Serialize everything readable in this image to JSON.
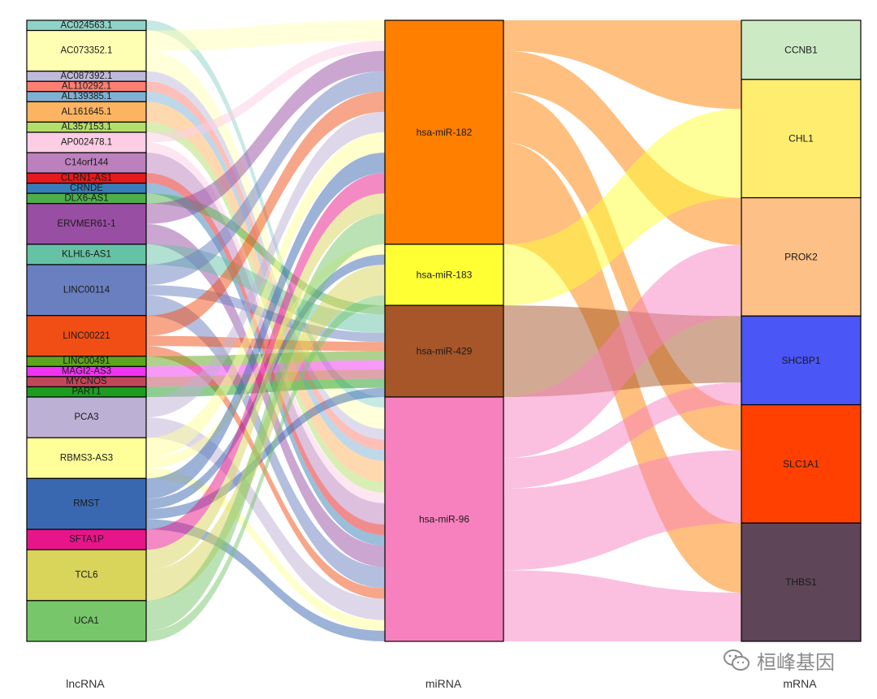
{
  "diagram": {
    "columns": [
      {
        "key": "lnc",
        "label": "lncRNA",
        "nodes": [
          {
            "name": "AC024563.1",
            "weight": 1,
            "color": "#8fd3c7"
          },
          {
            "name": "AC073352.1",
            "weight": 4,
            "color": "#ffffb3"
          },
          {
            "name": "AC087392.1",
            "weight": 1,
            "color": "#bebada"
          },
          {
            "name": "AL110292.1",
            "weight": 1,
            "color": "#fb8072"
          },
          {
            "name": "AL139385.1",
            "weight": 1,
            "color": "#80b1d3"
          },
          {
            "name": "AL161645.1",
            "weight": 2,
            "color": "#fdb462"
          },
          {
            "name": "AL357153.1",
            "weight": 1,
            "color": "#b3de69"
          },
          {
            "name": "AP002478.1",
            "weight": 2,
            "color": "#fccde5"
          },
          {
            "name": "C14orf144",
            "weight": 2,
            "color": "#bc80bd"
          },
          {
            "name": "CLRN1-AS1",
            "weight": 1,
            "color": "#e41a1c"
          },
          {
            "name": "CRNDE",
            "weight": 1,
            "color": "#377eb8"
          },
          {
            "name": "DLX6-AS1",
            "weight": 1,
            "color": "#4daf4a"
          },
          {
            "name": "ERVMER61-1",
            "weight": 4,
            "color": "#984ea3"
          },
          {
            "name": "KLHL6-AS1",
            "weight": 2,
            "color": "#66c2a5"
          },
          {
            "name": "LINC00114",
            "weight": 5,
            "color": "#6a7fbf"
          },
          {
            "name": "LINC00221",
            "weight": 4,
            "color": "#f04e14"
          },
          {
            "name": "LINC00491",
            "weight": 1,
            "color": "#5ea51e"
          },
          {
            "name": "MAGI2-AS3",
            "weight": 1,
            "color": "#f033f0"
          },
          {
            "name": "MYCNOS",
            "weight": 1,
            "color": "#c0475a"
          },
          {
            "name": "PART1",
            "weight": 1,
            "color": "#1b9e20"
          },
          {
            "name": "PCA3",
            "weight": 4,
            "color": "#bdb0d5"
          },
          {
            "name": "RBMS3-AS3",
            "weight": 4,
            "color": "#ffff99"
          },
          {
            "name": "RMST",
            "weight": 5,
            "color": "#3a68b0"
          },
          {
            "name": "SFTA1P",
            "weight": 2,
            "color": "#e7158a"
          },
          {
            "name": "TCL6",
            "weight": 5,
            "color": "#d9d45a"
          },
          {
            "name": "UCA1",
            "weight": 4,
            "color": "#77c66a"
          }
        ]
      },
      {
        "key": "mir",
        "label": "miRNA",
        "nodes": [
          {
            "name": "hsa-miR-182",
            "weight": 22,
            "color": "#ff7f00"
          },
          {
            "name": "hsa-miR-183",
            "weight": 6,
            "color": "#ffff33"
          },
          {
            "name": "hsa-miR-429",
            "weight": 9,
            "color": "#a65628"
          },
          {
            "name": "hsa-miR-96",
            "weight": 24,
            "color": "#f781bf"
          }
        ]
      },
      {
        "key": "mrna",
        "label": "mRNA",
        "nodes": [
          {
            "name": "CCNB1",
            "weight": 1,
            "color": "#ccebc5"
          },
          {
            "name": "CHL1",
            "weight": 2,
            "color": "#ffed6f"
          },
          {
            "name": "PROK2",
            "weight": 2,
            "color": "#fdc086"
          },
          {
            "name": "SHCBP1",
            "weight": 1.5,
            "color": "#4a56f5"
          },
          {
            "name": "SLC1A1",
            "weight": 2,
            "color": "#ff4000"
          },
          {
            "name": "THBS1",
            "weight": 2,
            "color": "#5e4558"
          }
        ]
      }
    ],
    "links_lnc_mir": [
      [
        "AC024563.1",
        "hsa-miR-96",
        1
      ],
      [
        "AC073352.1",
        "hsa-miR-182",
        2
      ],
      [
        "AC073352.1",
        "hsa-miR-96",
        2
      ],
      [
        "AC087392.1",
        "hsa-miR-96",
        1
      ],
      [
        "AL110292.1",
        "hsa-miR-96",
        1
      ],
      [
        "AL139385.1",
        "hsa-miR-96",
        1
      ],
      [
        "AL161645.1",
        "hsa-miR-96",
        2
      ],
      [
        "AL357153.1",
        "hsa-miR-96",
        1
      ],
      [
        "AP002478.1",
        "hsa-miR-182",
        1
      ],
      [
        "AP002478.1",
        "hsa-miR-96",
        1
      ],
      [
        "C14orf144",
        "hsa-miR-96",
        2
      ],
      [
        "CLRN1-AS1",
        "hsa-miR-96",
        1
      ],
      [
        "CRNDE",
        "hsa-miR-96",
        1
      ],
      [
        "DLX6-AS1",
        "hsa-miR-429",
        1
      ],
      [
        "ERVMER61-1",
        "hsa-miR-182",
        2
      ],
      [
        "ERVMER61-1",
        "hsa-miR-96",
        2
      ],
      [
        "KLHL6-AS1",
        "hsa-miR-429",
        2
      ],
      [
        "LINC00114",
        "hsa-miR-182",
        2
      ],
      [
        "LINC00114",
        "hsa-miR-429",
        1
      ],
      [
        "LINC00114",
        "hsa-miR-96",
        2
      ],
      [
        "LINC00221",
        "hsa-miR-182",
        2
      ],
      [
        "LINC00221",
        "hsa-miR-429",
        1
      ],
      [
        "LINC00221",
        "hsa-miR-96",
        1
      ],
      [
        "LINC00491",
        "hsa-miR-429",
        1
      ],
      [
        "MAGI2-AS3",
        "hsa-miR-429",
        1
      ],
      [
        "MYCNOS",
        "hsa-miR-429",
        1
      ],
      [
        "PART1",
        "hsa-miR-429",
        1
      ],
      [
        "PCA3",
        "hsa-miR-182",
        2
      ],
      [
        "PCA3",
        "hsa-miR-96",
        2
      ],
      [
        "RBMS3-AS3",
        "hsa-miR-182",
        2
      ],
      [
        "RBMS3-AS3",
        "hsa-miR-183",
        1
      ],
      [
        "RBMS3-AS3",
        "hsa-miR-96",
        1
      ],
      [
        "RMST",
        "hsa-miR-182",
        2
      ],
      [
        "RMST",
        "hsa-miR-183",
        1
      ],
      [
        "RMST",
        "hsa-miR-429",
        1
      ],
      [
        "RMST",
        "hsa-miR-96",
        1
      ],
      [
        "SFTA1P",
        "hsa-miR-182",
        2
      ],
      [
        "TCL6",
        "hsa-miR-182",
        2
      ],
      [
        "TCL6",
        "hsa-miR-183",
        3
      ],
      [
        "UCA1",
        "hsa-miR-182",
        3
      ],
      [
        "UCA1",
        "hsa-miR-183",
        1
      ]
    ],
    "links_mir_mrna": [
      [
        "hsa-miR-182",
        "CCNB1",
        1
      ],
      [
        "hsa-miR-182",
        "CHL1",
        2
      ],
      [
        "hsa-miR-182",
        "PROK2",
        4
      ],
      [
        "hsa-miR-182",
        "SLC1A1",
        5
      ],
      [
        "hsa-miR-182",
        "THBS1",
        10
      ],
      [
        "hsa-miR-183",
        "CHL1",
        6
      ],
      [
        "hsa-miR-429",
        "SHCBP1",
        9
      ],
      [
        "hsa-miR-96",
        "PROK2",
        6
      ],
      [
        "hsa-miR-96",
        "SHCBP1",
        3
      ],
      [
        "hsa-miR-96",
        "SLC1A1",
        8
      ],
      [
        "hsa-miR-96",
        "THBS1",
        7
      ]
    ]
  },
  "watermark": {
    "text": "桓峰基因",
    "icon": "wechat-icon"
  }
}
